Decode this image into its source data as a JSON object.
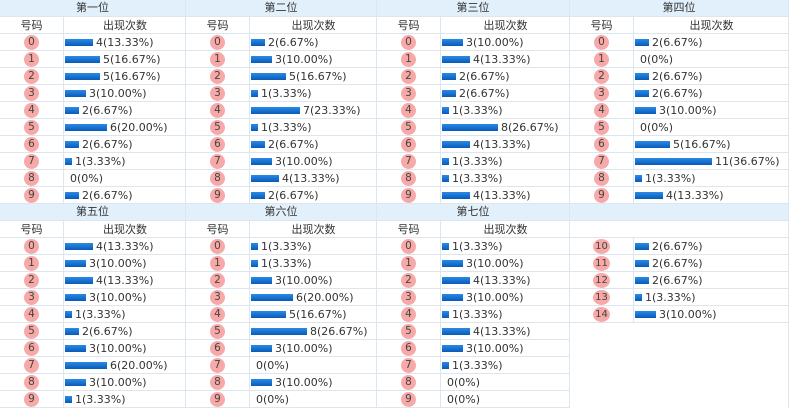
{
  "column_headers": {
    "number": "号码",
    "count": "出现次数"
  },
  "panels_top": [
    {
      "title": "第一位",
      "rows": [
        {
          "n": "0",
          "text": "4(13.33%)",
          "count": 4
        },
        {
          "n": "1",
          "text": "5(16.67%)",
          "count": 5
        },
        {
          "n": "2",
          "text": "5(16.67%)",
          "count": 5
        },
        {
          "n": "3",
          "text": "3(10.00%)",
          "count": 3
        },
        {
          "n": "4",
          "text": "2(6.67%)",
          "count": 2
        },
        {
          "n": "5",
          "text": "6(20.00%)",
          "count": 6
        },
        {
          "n": "6",
          "text": "2(6.67%)",
          "count": 2
        },
        {
          "n": "7",
          "text": "1(3.33%)",
          "count": 1
        },
        {
          "n": "8",
          "text": "0(0%)",
          "count": 0
        },
        {
          "n": "9",
          "text": "2(6.67%)",
          "count": 2
        }
      ]
    },
    {
      "title": "第二位",
      "rows": [
        {
          "n": "0",
          "text": "2(6.67%)",
          "count": 2
        },
        {
          "n": "1",
          "text": "3(10.00%)",
          "count": 3
        },
        {
          "n": "2",
          "text": "5(16.67%)",
          "count": 5
        },
        {
          "n": "3",
          "text": "1(3.33%)",
          "count": 1
        },
        {
          "n": "4",
          "text": "7(23.33%)",
          "count": 7
        },
        {
          "n": "5",
          "text": "1(3.33%)",
          "count": 1
        },
        {
          "n": "6",
          "text": "2(6.67%)",
          "count": 2
        },
        {
          "n": "7",
          "text": "3(10.00%)",
          "count": 3
        },
        {
          "n": "8",
          "text": "4(13.33%)",
          "count": 4
        },
        {
          "n": "9",
          "text": "2(6.67%)",
          "count": 2
        }
      ]
    },
    {
      "title": "第三位",
      "rows": [
        {
          "n": "0",
          "text": "3(10.00%)",
          "count": 3
        },
        {
          "n": "1",
          "text": "4(13.33%)",
          "count": 4
        },
        {
          "n": "2",
          "text": "2(6.67%)",
          "count": 2
        },
        {
          "n": "3",
          "text": "2(6.67%)",
          "count": 2
        },
        {
          "n": "4",
          "text": "1(3.33%)",
          "count": 1
        },
        {
          "n": "5",
          "text": "8(26.67%)",
          "count": 8
        },
        {
          "n": "6",
          "text": "4(13.33%)",
          "count": 4
        },
        {
          "n": "7",
          "text": "1(3.33%)",
          "count": 1
        },
        {
          "n": "8",
          "text": "1(3.33%)",
          "count": 1
        },
        {
          "n": "9",
          "text": "4(13.33%)",
          "count": 4
        }
      ]
    },
    {
      "title": "第四位",
      "rows": [
        {
          "n": "0",
          "text": "2(6.67%)",
          "count": 2
        },
        {
          "n": "1",
          "text": "0(0%)",
          "count": 0
        },
        {
          "n": "2",
          "text": "2(6.67%)",
          "count": 2
        },
        {
          "n": "3",
          "text": "2(6.67%)",
          "count": 2
        },
        {
          "n": "4",
          "text": "3(10.00%)",
          "count": 3
        },
        {
          "n": "5",
          "text": "0(0%)",
          "count": 0
        },
        {
          "n": "6",
          "text": "5(16.67%)",
          "count": 5
        },
        {
          "n": "7",
          "text": "11(36.67%)",
          "count": 11
        },
        {
          "n": "8",
          "text": "1(3.33%)",
          "count": 1
        },
        {
          "n": "9",
          "text": "4(13.33%)",
          "count": 4
        }
      ]
    }
  ],
  "panels_bottom": [
    {
      "title": "第五位",
      "rows": [
        {
          "n": "0",
          "text": "4(13.33%)",
          "count": 4
        },
        {
          "n": "1",
          "text": "3(10.00%)",
          "count": 3
        },
        {
          "n": "2",
          "text": "4(13.33%)",
          "count": 4
        },
        {
          "n": "3",
          "text": "3(10.00%)",
          "count": 3
        },
        {
          "n": "4",
          "text": "1(3.33%)",
          "count": 1
        },
        {
          "n": "5",
          "text": "2(6.67%)",
          "count": 2
        },
        {
          "n": "6",
          "text": "3(10.00%)",
          "count": 3
        },
        {
          "n": "7",
          "text": "6(20.00%)",
          "count": 6
        },
        {
          "n": "8",
          "text": "3(10.00%)",
          "count": 3
        },
        {
          "n": "9",
          "text": "1(3.33%)",
          "count": 1
        }
      ]
    },
    {
      "title": "第六位",
      "rows": [
        {
          "n": "0",
          "text": "1(3.33%)",
          "count": 1
        },
        {
          "n": "1",
          "text": "1(3.33%)",
          "count": 1
        },
        {
          "n": "2",
          "text": "3(10.00%)",
          "count": 3
        },
        {
          "n": "3",
          "text": "6(20.00%)",
          "count": 6
        },
        {
          "n": "4",
          "text": "5(16.67%)",
          "count": 5
        },
        {
          "n": "5",
          "text": "8(26.67%)",
          "count": 8
        },
        {
          "n": "6",
          "text": "3(10.00%)",
          "count": 3
        },
        {
          "n": "7",
          "text": "0(0%)",
          "count": 0
        },
        {
          "n": "8",
          "text": "3(10.00%)",
          "count": 3
        },
        {
          "n": "9",
          "text": "0(0%)",
          "count": 0
        }
      ]
    },
    {
      "title": "第七位",
      "rows": [
        {
          "n": "0",
          "text": "1(3.33%)",
          "count": 1
        },
        {
          "n": "1",
          "text": "3(10.00%)",
          "count": 3
        },
        {
          "n": "2",
          "text": "4(13.33%)",
          "count": 4
        },
        {
          "n": "3",
          "text": "3(10.00%)",
          "count": 3
        },
        {
          "n": "4",
          "text": "1(3.33%)",
          "count": 1
        },
        {
          "n": "5",
          "text": "4(13.33%)",
          "count": 4
        },
        {
          "n": "6",
          "text": "3(10.00%)",
          "count": 3
        },
        {
          "n": "7",
          "text": "1(3.33%)",
          "count": 1
        },
        {
          "n": "8",
          "text": "0(0%)",
          "count": 0
        },
        {
          "n": "9",
          "text": "0(0%)",
          "count": 0
        }
      ]
    },
    {
      "title": "",
      "rows": [
        {
          "n": "10",
          "text": "2(6.67%)",
          "count": 2
        },
        {
          "n": "11",
          "text": "2(6.67%)",
          "count": 2
        },
        {
          "n": "12",
          "text": "2(6.67%)",
          "count": 2
        },
        {
          "n": "13",
          "text": "1(3.33%)",
          "count": 1
        },
        {
          "n": "14",
          "text": "3(10.00%)",
          "count": 3
        }
      ]
    }
  ],
  "colors": {
    "header_bg": "#e1f0fb",
    "ball": "#f7a9a8",
    "bar": "#0a6fd6",
    "grid": "#dde6ee"
  }
}
